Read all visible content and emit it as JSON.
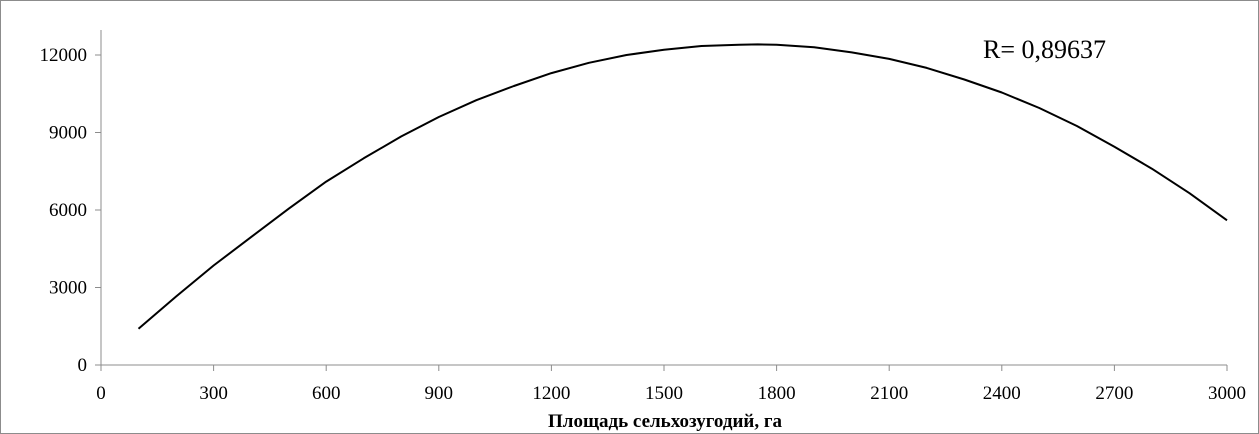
{
  "chart_data": {
    "type": "line",
    "title": "",
    "xlabel": "Площадь сельхозугодий, га",
    "ylabel": "",
    "xlim": [
      0,
      3000
    ],
    "ylim": [
      0,
      12000
    ],
    "x_ticks": [
      0,
      300,
      600,
      900,
      1200,
      1500,
      1800,
      2100,
      2400,
      2700,
      3000
    ],
    "y_ticks": [
      0,
      3000,
      6000,
      9000,
      12000
    ],
    "grid": false,
    "legend": "none",
    "annotation": "R= 0,89637",
    "series": [
      {
        "x": [
          100,
          200,
          300,
          400,
          500,
          600,
          700,
          800,
          900,
          1000,
          1100,
          1200,
          1300,
          1400,
          1500,
          1600,
          1700,
          1750,
          1800,
          1900,
          2000,
          2100,
          2200,
          2300,
          2400,
          2500,
          2600,
          2700,
          2800,
          2900,
          3000
        ],
        "y": [
          1400,
          2650,
          3850,
          4950,
          6050,
          7100,
          8000,
          8850,
          9600,
          10250,
          10800,
          11300,
          11700,
          12000,
          12200,
          12350,
          12400,
          12410,
          12400,
          12300,
          12100,
          11850,
          11500,
          11050,
          10550,
          9950,
          9250,
          8450,
          7600,
          6650,
          5600
        ],
        "color": "#000000"
      }
    ]
  }
}
